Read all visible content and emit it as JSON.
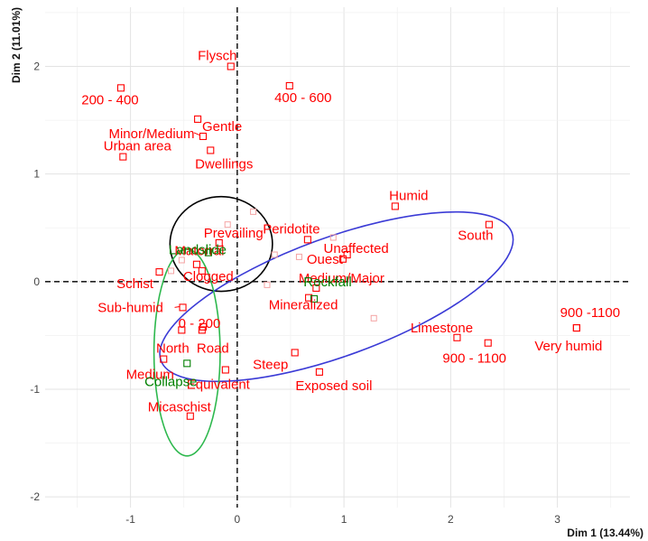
{
  "chart_data": {
    "type": "scatter",
    "title": "",
    "xlabel": "Dim 1 (13.44%)",
    "ylabel": "Dim 2 (11.01%)",
    "xlim": [
      -1.8,
      3.68
    ],
    "ylim": [
      -2.1,
      2.55
    ],
    "x_ticks": [
      -1,
      0,
      1,
      2,
      3
    ],
    "y_ticks": [
      -2,
      -1,
      0,
      1,
      2
    ],
    "x_tick_labels": [
      "-1",
      "0",
      "1",
      "2",
      "3"
    ],
    "y_tick_labels": [
      "-2",
      "-1",
      "0",
      "1",
      "2"
    ],
    "grid": true,
    "reference_lines": {
      "x": 0,
      "y": 0,
      "style": "dashed"
    },
    "colors": {
      "active_variables": "#ff0000",
      "supplementary_variables": "#008000",
      "faint_points": "#f4a3a3",
      "ellipse_landslide": "#000000",
      "ellipse_rockfall": "#3b3bd6",
      "ellipse_collapse": "#2db84d"
    },
    "points": [
      {
        "label": "Flysch",
        "x": -0.06,
        "y": 2.0,
        "group": "active"
      },
      {
        "label": "200 - 400",
        "x": -1.09,
        "y": 1.8,
        "group": "active"
      },
      {
        "label": "400 - 600",
        "x": 0.49,
        "y": 1.82,
        "group": "active"
      },
      {
        "label": "Gentle",
        "x": -0.37,
        "y": 1.51,
        "group": "active"
      },
      {
        "label": "Minor/Medium",
        "x": -0.32,
        "y": 1.35,
        "group": "active"
      },
      {
        "label": "Urban area",
        "x": -1.07,
        "y": 1.16,
        "group": "active"
      },
      {
        "label": "Dwellings",
        "x": -0.25,
        "y": 1.22,
        "group": "active"
      },
      {
        "label": "Humid",
        "x": 1.48,
        "y": 0.7,
        "group": "active"
      },
      {
        "label": "South",
        "x": 2.36,
        "y": 0.53,
        "group": "active"
      },
      {
        "label": "Prevailing",
        "x": -0.17,
        "y": 0.36,
        "group": "active"
      },
      {
        "label": "Peridotite",
        "x": 0.66,
        "y": 0.39,
        "group": "active"
      },
      {
        "label": "Unaffected",
        "x": 1.03,
        "y": 0.25,
        "group": "active"
      },
      {
        "label": "Matorral",
        "x": -0.38,
        "y": 0.16,
        "group": "active"
      },
      {
        "label": "Clogged",
        "x": -0.33,
        "y": 0.1,
        "group": "active"
      },
      {
        "label": "Schist",
        "x": -0.73,
        "y": 0.09,
        "group": "active"
      },
      {
        "label": "Ouest",
        "x": 0.99,
        "y": 0.21,
        "group": "active"
      },
      {
        "label": "Sub-humid",
        "x": -0.51,
        "y": -0.24,
        "group": "active"
      },
      {
        "label": "0 - 200",
        "x": -0.32,
        "y": -0.42,
        "group": "active"
      },
      {
        "label": "Mineralized",
        "x": 0.67,
        "y": -0.15,
        "group": "active"
      },
      {
        "label": "Medium/Major",
        "x": 0.74,
        "y": -0.06,
        "group": "active"
      },
      {
        "label": "North",
        "x": -0.52,
        "y": -0.45,
        "group": "active"
      },
      {
        "label": "Road",
        "x": -0.33,
        "y": -0.45,
        "group": "active"
      },
      {
        "label": "Limestone",
        "x": 2.06,
        "y": -0.52,
        "group": "active"
      },
      {
        "label": "900 -1100",
        "x": 3.18,
        "y": -0.43,
        "group": "active"
      },
      {
        "label": "900 - 1100",
        "x": 2.35,
        "y": -0.57,
        "group": "active"
      },
      {
        "label": "Very humid",
        "x": 3.18,
        "y": -0.43,
        "group": "active"
      },
      {
        "label": "Medium",
        "x": -0.69,
        "y": -0.72,
        "group": "active"
      },
      {
        "label": "Steep",
        "x": 0.54,
        "y": -0.66,
        "group": "active"
      },
      {
        "label": "Equivalent",
        "x": -0.11,
        "y": -0.82,
        "group": "active"
      },
      {
        "label": "Exposed soil",
        "x": 0.77,
        "y": -0.84,
        "group": "active"
      },
      {
        "label": "Micaschist",
        "x": -0.44,
        "y": -1.25,
        "group": "active"
      },
      {
        "label": "Landslide",
        "x": -0.27,
        "y": 0.27,
        "group": "supplementary"
      },
      {
        "label": "Rockfall",
        "x": 0.72,
        "y": -0.16,
        "group": "supplementary"
      },
      {
        "label": "Collapse",
        "x": -0.47,
        "y": -0.76,
        "group": "supplementary"
      }
    ],
    "faint_points": [
      {
        "x": 0.15,
        "y": 0.65
      },
      {
        "x": 0.35,
        "y": 0.25
      },
      {
        "x": 0.58,
        "y": 0.23
      },
      {
        "x": 0.9,
        "y": 0.41
      },
      {
        "x": 1.28,
        "y": -0.34
      },
      {
        "x": 0.28,
        "y": -0.03
      },
      {
        "x": -0.62,
        "y": 0.1
      },
      {
        "x": -0.52,
        "y": 0.2
      },
      {
        "x": -0.09,
        "y": 0.53
      }
    ],
    "ellipses": [
      {
        "name": "Landslide",
        "cx": -0.15,
        "cy": 0.35,
        "rx": 0.48,
        "ry": 0.44,
        "angle": 0
      },
      {
        "name": "Rockfall",
        "cx": 0.93,
        "cy": -0.14,
        "rx": 1.75,
        "ry": 0.55,
        "angle": -20
      },
      {
        "name": "Collapse",
        "cx": -0.47,
        "cy": -0.66,
        "rx": 0.31,
        "ry": 0.96,
        "angle": 0
      }
    ]
  }
}
